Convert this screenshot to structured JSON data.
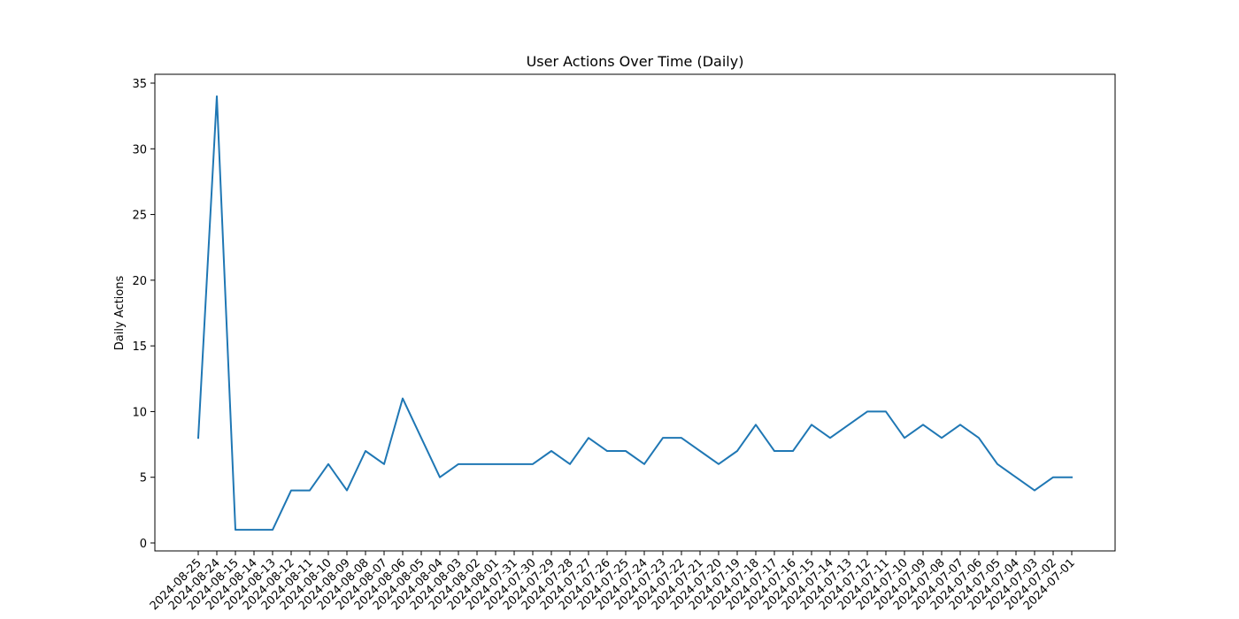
{
  "chart_data": {
    "type": "line",
    "title": "User Actions Over Time (Daily)",
    "xlabel": "",
    "ylabel": "Daily Actions",
    "ylim": [
      0,
      35
    ],
    "yticks": [
      0,
      5,
      10,
      15,
      20,
      25,
      30,
      35
    ],
    "grid": false,
    "legend": "none",
    "colors": {
      "line": "#1f77b4",
      "axes": "#000000",
      "background": "#ffffff"
    },
    "categories": [
      "2024-08-25",
      "2024-08-24",
      "2024-08-15",
      "2024-08-14",
      "2024-08-13",
      "2024-08-12",
      "2024-08-11",
      "2024-08-10",
      "2024-08-09",
      "2024-08-08",
      "2024-08-07",
      "2024-08-06",
      "2024-08-05",
      "2024-08-04",
      "2024-08-03",
      "2024-08-02",
      "2024-08-01",
      "2024-07-31",
      "2024-07-30",
      "2024-07-29",
      "2024-07-28",
      "2024-07-27",
      "2024-07-26",
      "2024-07-25",
      "2024-07-24",
      "2024-07-23",
      "2024-07-22",
      "2024-07-21",
      "2024-07-20",
      "2024-07-19",
      "2024-07-18",
      "2024-07-17",
      "2024-07-16",
      "2024-07-15",
      "2024-07-14",
      "2024-07-13",
      "2024-07-12",
      "2024-07-11",
      "2024-07-10",
      "2024-07-09",
      "2024-07-08",
      "2024-07-07",
      "2024-07-06",
      "2024-07-05",
      "2024-07-04",
      "2024-07-03",
      "2024-07-02",
      "2024-07-01"
    ],
    "series": [
      {
        "values": [
          8,
          34,
          1,
          1,
          1,
          4,
          4,
          6,
          4,
          7,
          6,
          11,
          8,
          5,
          6,
          6,
          6,
          6,
          6,
          7,
          6,
          8,
          7,
          7,
          6,
          8,
          8,
          7,
          6,
          7,
          9,
          7,
          7,
          9,
          8,
          9,
          10,
          10,
          8,
          9,
          8,
          9,
          8,
          6,
          5,
          4,
          5,
          5
        ]
      }
    ]
  }
}
